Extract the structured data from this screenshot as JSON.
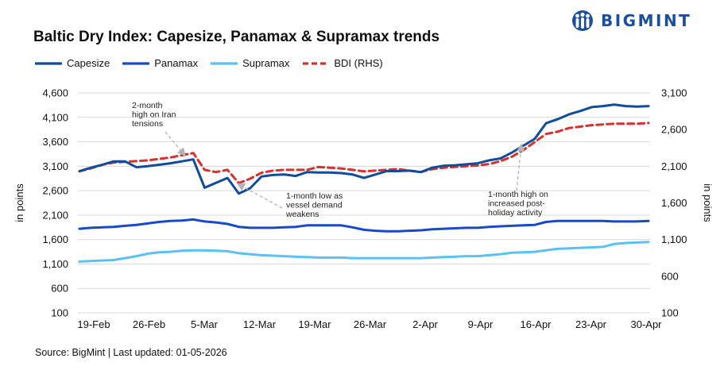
{
  "header": {
    "title": "Baltic Dry Index: Capesize, Panamax & Supramax trends",
    "logo_text": "BIGMINT",
    "logo_icon": "people-group-icon"
  },
  "footer": {
    "source": "Source: BigMint | Last updated: 01-05-2026"
  },
  "colors": {
    "capesize": "#0f4c9a",
    "panamax": "#1749c9",
    "supramax": "#5bc1ee",
    "bdi": "#d8302f",
    "arrow": "#b3b3b3"
  },
  "chart_data": {
    "type": "line",
    "title": "Baltic Dry Index: Capesize, Panamax & Supramax trends",
    "ylabel": "in points",
    "y2label": "in points",
    "ylim": [
      100,
      4600
    ],
    "yticks": [
      "100",
      "600",
      "1,100",
      "1,600",
      "2,100",
      "2,600",
      "3,100",
      "3,600",
      "4,100",
      "4,600"
    ],
    "y2lim": [
      100,
      3100
    ],
    "y2ticks": [
      "100",
      "600",
      "1,100",
      "1,600",
      "2,100",
      "2,600",
      "3,100"
    ],
    "grid": "horizontal",
    "legend_position": "top-left",
    "x_tick_labels": [
      "19-Feb",
      "26-Feb",
      "5-Mar",
      "12-Mar",
      "19-Mar",
      "26-Mar",
      "2-Apr",
      "9-Apr",
      "16-Apr",
      "23-Apr",
      "30-Apr"
    ],
    "n_points": 51,
    "series": [
      {
        "name": "Capesize",
        "axis": "left",
        "values": [
          3000,
          3070,
          3130,
          3200,
          3200,
          3080,
          3100,
          3130,
          3160,
          3200,
          3240,
          2660,
          2760,
          2860,
          2540,
          2650,
          2890,
          2920,
          2930,
          2900,
          2980,
          2970,
          2970,
          2960,
          2930,
          2860,
          2930,
          3000,
          3000,
          3010,
          2980,
          3070,
          3110,
          3120,
          3140,
          3160,
          3220,
          3260,
          3380,
          3520,
          3660,
          3980,
          4060,
          4160,
          4230,
          4310,
          4330,
          4360,
          4330,
          4320,
          4330
        ]
      },
      {
        "name": "Panamax",
        "axis": "left",
        "values": [
          1820,
          1840,
          1850,
          1860,
          1880,
          1900,
          1930,
          1960,
          1980,
          1990,
          2010,
          1970,
          1950,
          1920,
          1860,
          1840,
          1840,
          1840,
          1850,
          1860,
          1890,
          1890,
          1890,
          1890,
          1850,
          1800,
          1780,
          1770,
          1770,
          1780,
          1790,
          1810,
          1820,
          1830,
          1840,
          1840,
          1860,
          1870,
          1880,
          1890,
          1900,
          1960,
          1980,
          1980,
          1980,
          1980,
          1980,
          1970,
          1970,
          1970,
          1980
        ]
      },
      {
        "name": "Supramax",
        "axis": "left",
        "values": [
          1150,
          1160,
          1170,
          1180,
          1220,
          1260,
          1310,
          1340,
          1350,
          1370,
          1380,
          1380,
          1370,
          1360,
          1320,
          1300,
          1280,
          1270,
          1260,
          1250,
          1240,
          1230,
          1230,
          1230,
          1220,
          1220,
          1220,
          1220,
          1220,
          1220,
          1220,
          1230,
          1240,
          1250,
          1260,
          1260,
          1280,
          1300,
          1330,
          1340,
          1350,
          1380,
          1410,
          1420,
          1430,
          1440,
          1450,
          1510,
          1530,
          1540,
          1550
        ]
      },
      {
        "name": "BDI (RHS)",
        "axis": "right",
        "values": [
          2030,
          2070,
          2120,
          2150,
          2160,
          2170,
          2180,
          2200,
          2220,
          2250,
          2280,
          2050,
          2020,
          2050,
          1870,
          1930,
          2010,
          2040,
          2050,
          2050,
          2050,
          2090,
          2080,
          2070,
          2050,
          2030,
          2040,
          2050,
          2060,
          2040,
          2020,
          2060,
          2080,
          2090,
          2100,
          2110,
          2130,
          2170,
          2230,
          2320,
          2430,
          2540,
          2570,
          2620,
          2640,
          2660,
          2670,
          2680,
          2680,
          2680,
          2690
        ]
      }
    ],
    "annotations": [
      {
        "name": "annotation-iran-high",
        "lines": [
          "2-month",
          "high on Iran",
          "tensions"
        ]
      },
      {
        "name": "annotation-vessel-demand",
        "lines": [
          "1-month low as",
          "vessel demand",
          "weakens"
        ]
      },
      {
        "name": "annotation-post-holiday",
        "lines": [
          "1-month high on",
          "increased post-",
          "holiday activity"
        ]
      }
    ]
  }
}
